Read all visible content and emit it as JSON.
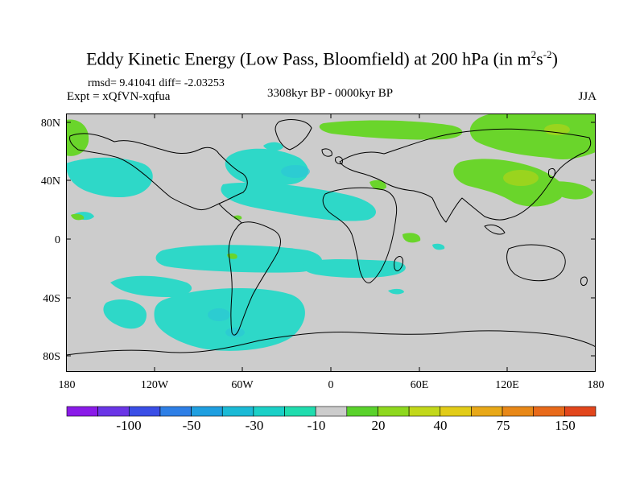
{
  "figure": {
    "title_main": "Eddy Kinetic Energy (Low Pass, Bloomfield) at 200 hPa (in m",
    "title_sup1": "2",
    "title_mid": "s",
    "title_sup2": "-2",
    "title_end": ")",
    "stats": "rmsd= 9.41041 diff= -2.03253",
    "expt": "Expt = xQfVN-xqfua",
    "period": "3308kyr BP - 0000kyr BP",
    "season": "JJA"
  },
  "axes": {
    "lat_labels": [
      "80N",
      "40N",
      "0",
      "40S",
      "80S"
    ],
    "lon_labels": [
      "180",
      "120W",
      "60W",
      "0",
      "60E",
      "120E",
      "180"
    ]
  },
  "colorbar": {
    "labels": [
      "-100",
      "-50",
      "-30",
      "-10",
      "20",
      "40",
      "75",
      "150"
    ],
    "colors": [
      "#8a1be8",
      "#6a35e6",
      "#3a4ee6",
      "#2e7fe6",
      "#1f9fe0",
      "#1bbad6",
      "#1bd0c7",
      "#20dcae",
      "#cccccc",
      "#5ad22c",
      "#8ed81e",
      "#c2d81a",
      "#e2cc18",
      "#e8a818",
      "#e88818",
      "#e86a1a",
      "#e2461c"
    ]
  },
  "colors": {
    "land_background": "#cccccc",
    "negative_field": "#2ed8c8",
    "negative_core": "#2cc8d6",
    "positive_field": "#6ad52b",
    "positive_core": "#9ad41e",
    "coastline": "#000000"
  }
}
